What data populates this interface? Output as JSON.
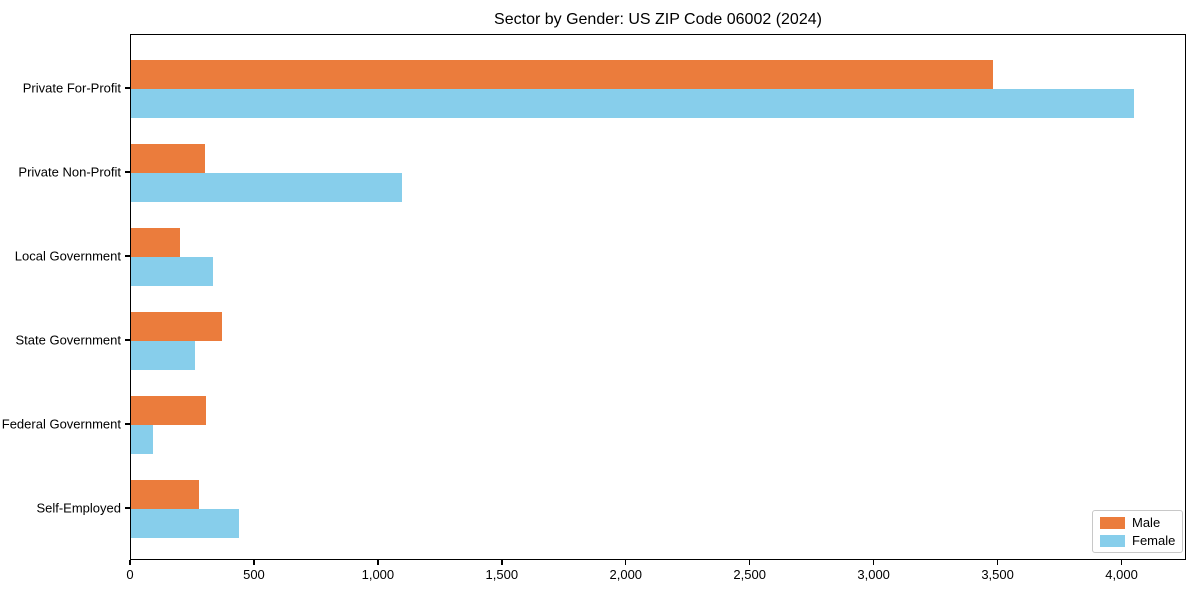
{
  "chart_data": {
    "type": "bar",
    "orientation": "horizontal",
    "title": "Sector by Gender: US ZIP Code 06002 (2024)",
    "xlabel": "",
    "ylabel": "",
    "categories": [
      "Private For-Profit",
      "Private Non-Profit",
      "Local Government",
      "State Government",
      "Federal Government",
      "Self-Employed"
    ],
    "series": [
      {
        "name": "Male",
        "color": "#EB7C3C",
        "values": [
          3485,
          298,
          198,
          366,
          305,
          273
        ]
      },
      {
        "name": "Female",
        "color": "#87CEEB",
        "values": [
          4055,
          1095,
          333,
          257,
          88,
          438
        ]
      }
    ],
    "xlim": [
      0,
      4260
    ],
    "xticks": [
      0,
      500,
      1000,
      1500,
      2000,
      2500,
      3000,
      3500,
      4000
    ],
    "xtick_labels": [
      "0",
      "500",
      "1,000",
      "1,500",
      "2,000",
      "2,500",
      "3,000",
      "3,500",
      "4,000"
    ],
    "grid": false,
    "legend": {
      "position": "lower right",
      "entries": [
        "Male",
        "Female"
      ]
    },
    "colors": {
      "axis": "#000000",
      "legend_border": "#c8c8c8",
      "background": "#ffffff"
    }
  }
}
